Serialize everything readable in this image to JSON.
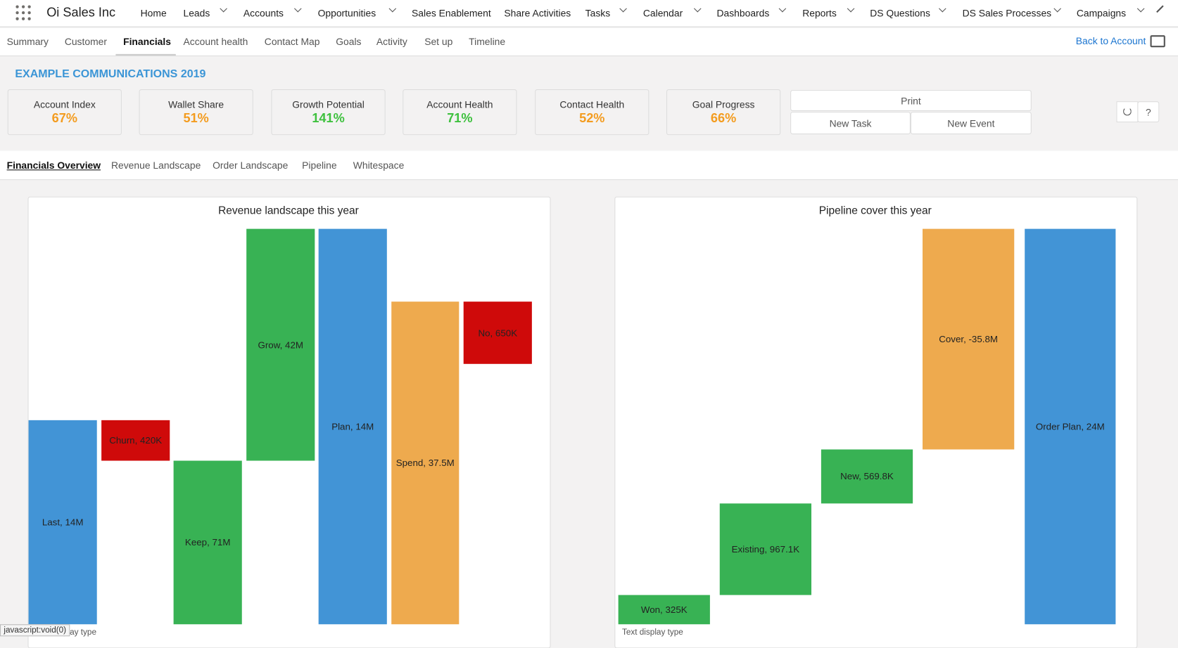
{
  "app_name": "Oi Sales Inc",
  "nav": [
    "Home",
    "Leads",
    "Accounts",
    "Opportunities",
    "Sales Enablement",
    "Share Activities",
    "Tasks",
    "Calendar",
    "Dashboards",
    "Reports",
    "DS Questions",
    "DS Sales Processes",
    "Campaigns"
  ],
  "record_tabs": [
    "Summary",
    "Customer",
    "Financials",
    "Account health",
    "Contact Map",
    "Goals",
    "Activity",
    "Set up",
    "Timeline"
  ],
  "back_link": "Back to Account",
  "account_title": "EXAMPLE COMMUNICATIONS 2019",
  "metrics": [
    {
      "label": "Account Index",
      "value": "67%"
    },
    {
      "label": "Wallet Share",
      "value": "51%"
    },
    {
      "label": "Growth Potential",
      "value": "141%"
    },
    {
      "label": "Account Health",
      "value": "71%"
    },
    {
      "label": "Contact Health",
      "value": "52%"
    },
    {
      "label": "Goal Progress",
      "value": "66%"
    }
  ],
  "buttons": {
    "print": "Print",
    "new_task": "New Task",
    "new_event": "New Event",
    "help": "?"
  },
  "financial_tabs": [
    "Financials Overview",
    "Revenue Landscape",
    "Order Landscape",
    "Pipeline",
    "Whitespace"
  ],
  "charts": [
    {
      "title": "Revenue landscape this year",
      "bars": [
        "Last, 14M",
        "Churn, 420K",
        "Keep, 71M",
        "Grow, 42M",
        "Plan, 14M",
        "Spend, 37.5M",
        "No, 650K"
      ],
      "footer": "Text display type"
    },
    {
      "title": "Pipeline cover this year",
      "bars": [
        "Won, 325K",
        "Existing, 967.1K",
        "New, 569.8K",
        "Cover, -35.8M",
        "Order Plan, 24M"
      ],
      "footer": "Text display type"
    }
  ],
  "status_url": "javascript:void(0)"
}
